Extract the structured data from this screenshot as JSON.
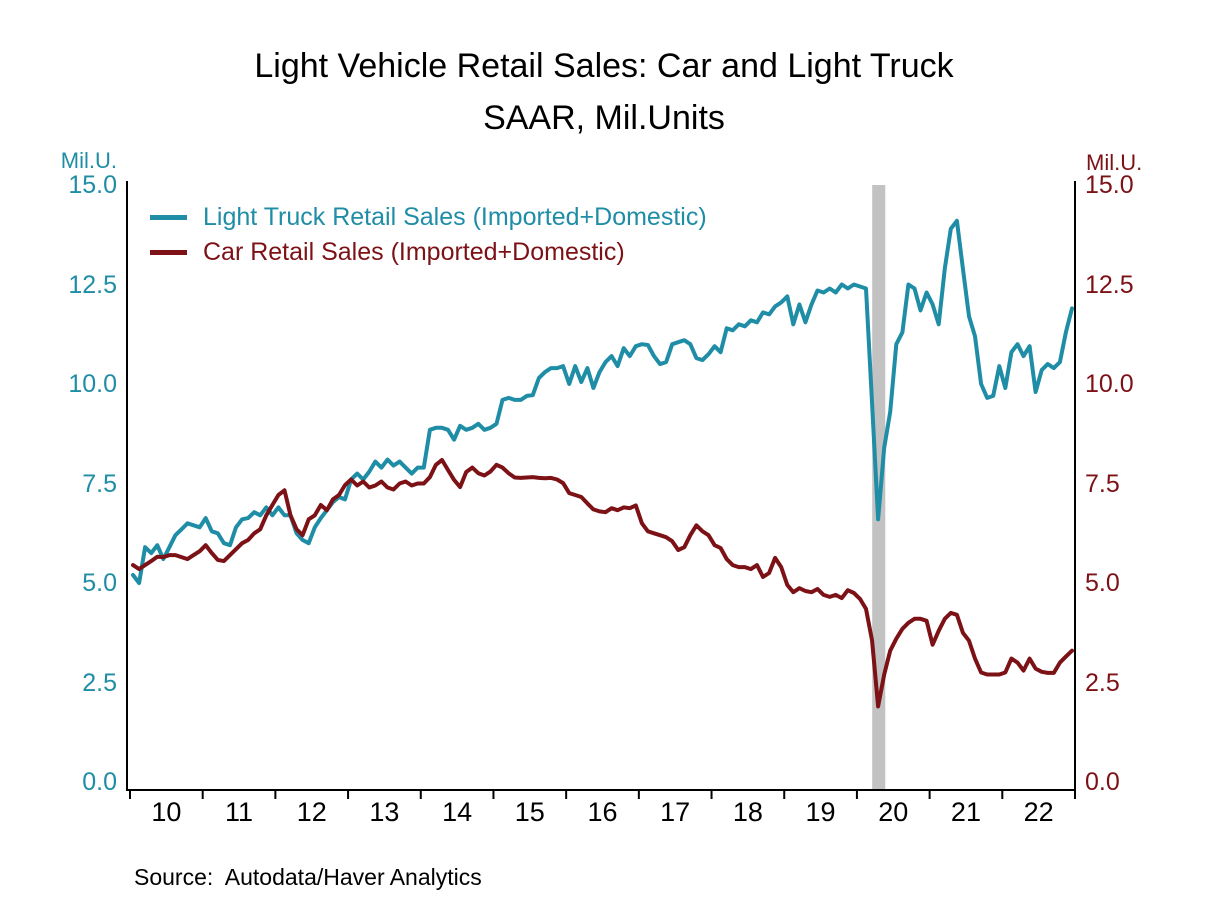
{
  "title": {
    "line1": "Light Vehicle Retail Sales: Car and Light Truck",
    "line2": "SAAR, Mil.Units"
  },
  "source": "Source:  Autodata/Haver Analytics",
  "chart_data": {
    "type": "line",
    "title": "Light Vehicle Retail Sales: Car and Light Truck SAAR, Mil.Units",
    "x_frequency": "monthly",
    "x_start_year": 2010,
    "x_end_year": 2022,
    "x_tick_labels": [
      "10",
      "11",
      "12",
      "13",
      "14",
      "15",
      "16",
      "17",
      "18",
      "19",
      "20",
      "21",
      "22"
    ],
    "y_axis": {
      "left_label": "Mil.U.",
      "right_label": "Mil.U.",
      "min": 0.0,
      "max": 15.0,
      "ticks": [
        15.0,
        12.5,
        10.0,
        7.5,
        5.0,
        2.5,
        0.0
      ],
      "tick_labels": [
        "15.0",
        "12.5",
        "10.0",
        "7.5",
        "5.0",
        "2.5",
        "0.0"
      ],
      "left_color": "#1f8da6",
      "right_color": "#7c1116"
    },
    "grid": false,
    "legend_position": "top-left",
    "recession_band": {
      "from_year": 2020.21,
      "to_year": 2020.39,
      "color": "#c2c2c2"
    },
    "series": [
      {
        "name": "Light Truck Retail Sales (Imported+Domestic)",
        "color": "#1f8da6",
        "values": [
          5.2,
          5.0,
          5.9,
          5.75,
          5.95,
          5.6,
          5.9,
          6.2,
          6.35,
          6.5,
          6.45,
          6.4,
          6.63,
          6.3,
          6.25,
          6.0,
          5.95,
          6.4,
          6.6,
          6.63,
          6.78,
          6.7,
          6.9,
          6.7,
          6.9,
          6.7,
          6.7,
          6.25,
          6.08,
          6.0,
          6.4,
          6.63,
          6.83,
          7.03,
          7.16,
          7.1,
          7.6,
          7.75,
          7.6,
          7.8,
          8.05,
          7.9,
          8.1,
          7.95,
          8.05,
          7.9,
          7.75,
          7.9,
          7.9,
          8.85,
          8.9,
          8.9,
          8.85,
          8.6,
          8.95,
          8.85,
          8.9,
          9.0,
          8.85,
          8.9,
          9.0,
          9.6,
          9.65,
          9.6,
          9.6,
          9.7,
          9.72,
          10.15,
          10.3,
          10.4,
          10.4,
          10.45,
          10.0,
          10.45,
          10.05,
          10.4,
          9.9,
          10.3,
          10.55,
          10.7,
          10.45,
          10.9,
          10.7,
          10.95,
          11.0,
          10.98,
          10.7,
          10.5,
          10.55,
          11.0,
          11.05,
          11.1,
          11.0,
          10.65,
          10.6,
          10.75,
          10.95,
          10.8,
          11.4,
          11.35,
          11.5,
          11.45,
          11.6,
          11.55,
          11.8,
          11.75,
          11.95,
          12.05,
          12.2,
          11.5,
          12.0,
          11.55,
          12.0,
          12.35,
          12.3,
          12.4,
          12.3,
          12.5,
          12.4,
          12.5,
          12.45,
          12.4,
          9.5,
          6.6,
          8.4,
          9.3,
          11.0,
          11.3,
          12.5,
          12.4,
          11.85,
          12.3,
          12.0,
          11.5,
          12.9,
          13.9,
          14.1,
          12.9,
          11.7,
          11.2,
          10.0,
          9.65,
          9.7,
          10.45,
          9.9,
          10.8,
          11.0,
          10.7,
          10.95,
          9.8,
          10.35,
          10.5,
          10.4,
          10.55,
          11.3,
          11.9
        ]
      },
      {
        "name": "Car Retail Sales (Imported+Domestic)",
        "color": "#7c1116",
        "values": [
          5.45,
          5.35,
          5.45,
          5.55,
          5.66,
          5.65,
          5.7,
          5.7,
          5.65,
          5.6,
          5.7,
          5.8,
          5.95,
          5.75,
          5.58,
          5.55,
          5.7,
          5.85,
          6.0,
          6.08,
          6.25,
          6.35,
          6.7,
          6.96,
          7.21,
          7.33,
          6.7,
          6.35,
          6.2,
          6.6,
          6.7,
          6.96,
          6.83,
          7.1,
          7.21,
          7.46,
          7.6,
          7.45,
          7.55,
          7.4,
          7.45,
          7.55,
          7.4,
          7.35,
          7.5,
          7.55,
          7.45,
          7.5,
          7.5,
          7.66,
          7.97,
          8.09,
          7.84,
          7.59,
          7.41,
          7.79,
          7.9,
          7.76,
          7.7,
          7.8,
          7.97,
          7.9,
          7.76,
          7.65,
          7.64,
          7.65,
          7.66,
          7.64,
          7.63,
          7.64,
          7.6,
          7.51,
          7.26,
          7.21,
          7.16,
          7.0,
          6.85,
          6.8,
          6.78,
          6.88,
          6.83,
          6.9,
          6.88,
          6.95,
          6.5,
          6.3,
          6.25,
          6.2,
          6.15,
          6.05,
          5.83,
          5.9,
          6.2,
          6.45,
          6.3,
          6.2,
          5.95,
          5.88,
          5.6,
          5.45,
          5.4,
          5.4,
          5.35,
          5.45,
          5.15,
          5.25,
          5.63,
          5.4,
          4.95,
          4.77,
          4.87,
          4.8,
          4.77,
          4.85,
          4.7,
          4.65,
          4.7,
          4.62,
          4.82,
          4.75,
          4.6,
          4.35,
          3.55,
          1.9,
          2.7,
          3.3,
          3.6,
          3.85,
          4.0,
          4.1,
          4.1,
          4.05,
          3.45,
          3.8,
          4.1,
          4.25,
          4.2,
          3.75,
          3.55,
          3.1,
          2.75,
          2.7,
          2.7,
          2.7,
          2.75,
          3.1,
          3.0,
          2.8,
          3.1,
          2.85,
          2.77,
          2.74,
          2.74,
          3.0,
          3.15,
          3.3
        ]
      }
    ]
  }
}
